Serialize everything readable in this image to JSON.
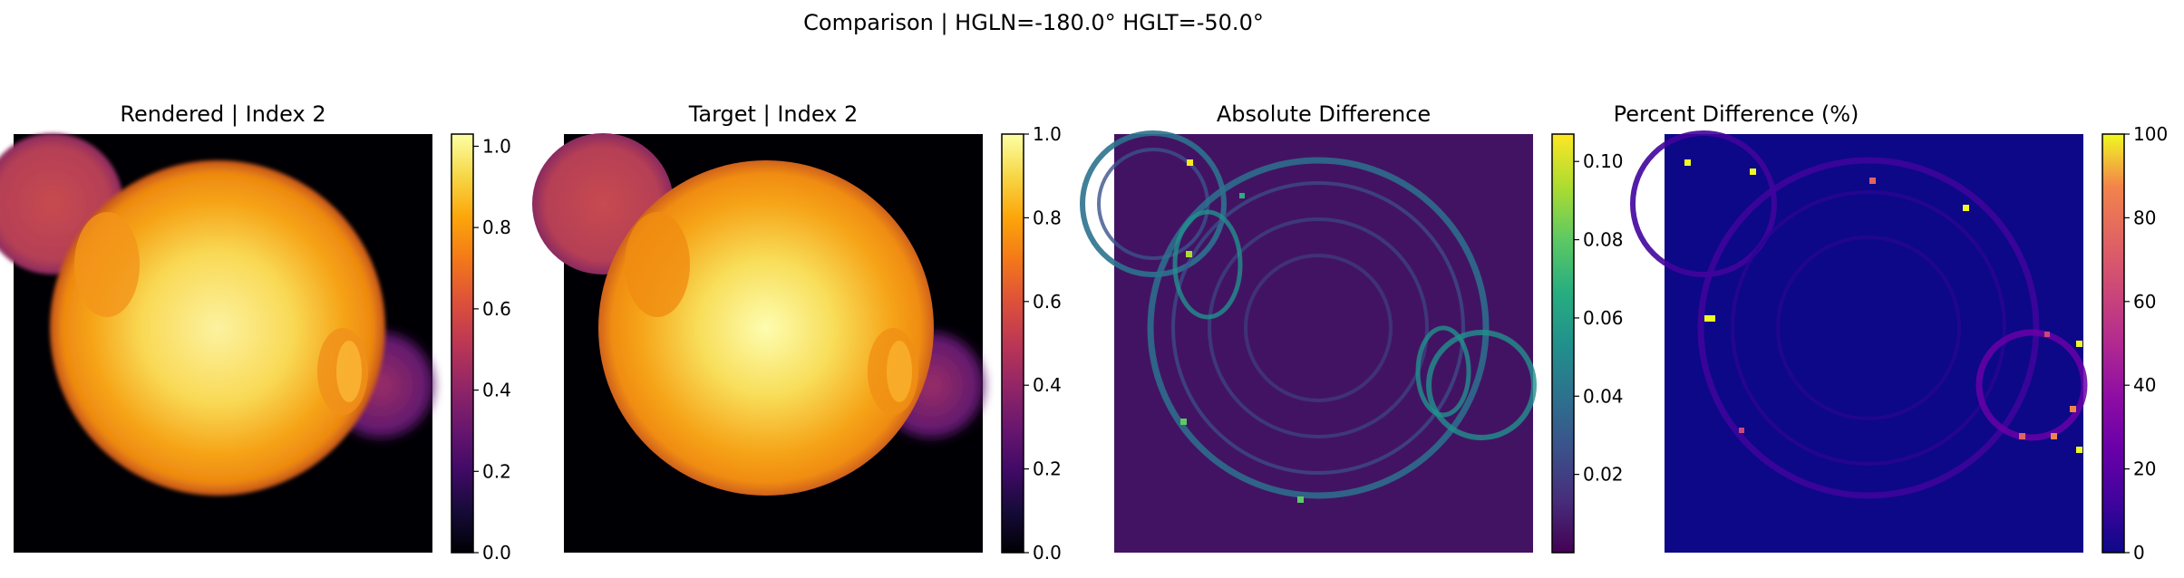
{
  "figure": {
    "suptitle": "Comparison | HGLN=-180.0° HGLT=-50.0°"
  },
  "chart_data": [
    {
      "type": "heatmap",
      "title": "Rendered | Index 2",
      "colormap": "inferno",
      "vmin": 0.0,
      "vmax": 1.03,
      "colorbar_ticks": [
        "0.0",
        "0.2",
        "0.4",
        "0.6",
        "0.8",
        "1.0"
      ],
      "colorbar_tick_values": [
        0.0,
        0.2,
        0.4,
        0.6,
        0.8,
        1.0
      ],
      "image_description": "Bright solar-like sphere centered, with a smaller dim disk at upper-left and a faint disk at right; blurred/soft rendering"
    },
    {
      "type": "heatmap",
      "title": "Target | Index 2",
      "colormap": "inferno",
      "vmin": 0.0,
      "vmax": 1.0,
      "colorbar_ticks": [
        "0.0",
        "0.2",
        "0.4",
        "0.6",
        "0.8",
        "1.0"
      ],
      "colorbar_tick_values": [
        0.0,
        0.2,
        0.4,
        0.6,
        0.8,
        1.0
      ],
      "image_description": "Same scene as Rendered but smoother, brighter core"
    },
    {
      "type": "heatmap",
      "title": "Absolute Difference",
      "colormap": "viridis",
      "vmin": 0.0,
      "vmax": 0.107,
      "colorbar_ticks": [
        "0.02",
        "0.04",
        "0.06",
        "0.08",
        "0.10"
      ],
      "colorbar_tick_values": [
        0.02,
        0.04,
        0.06,
        0.08,
        0.1
      ],
      "image_description": "Mostly dark purple with teal/green ring-like edge structures around sphere boundaries"
    },
    {
      "type": "heatmap",
      "title": "Percent Difference (%)",
      "colormap": "plasma",
      "vmin": 0,
      "vmax": 100,
      "colorbar_ticks": [
        "0",
        "20",
        "40",
        "60",
        "80",
        "100"
      ],
      "colorbar_tick_values": [
        0,
        20,
        40,
        60,
        80,
        100
      ],
      "image_description": "Mostly deep blue with faint purple ring outlines and sparse bright orange/yellow outlier pixels near edges"
    }
  ]
}
